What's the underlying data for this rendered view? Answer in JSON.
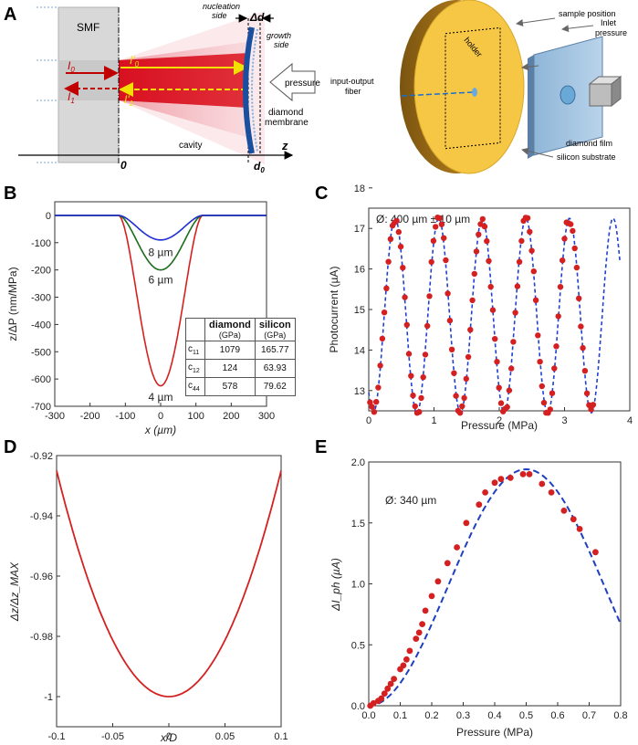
{
  "figure": {
    "panel_labels": [
      "A",
      "B",
      "C",
      "D",
      "E"
    ]
  },
  "panelA": {
    "left": {
      "smf": "SMF",
      "I0": "I",
      "I0_sub": "0",
      "I1": "I",
      "I1_sub": "1",
      "I0p": "I'",
      "I0p_sub": "0",
      "I1p": "I'",
      "I1p_sub": "1",
      "nucleation": "nucleation\nside",
      "growth": "growth\nside",
      "delta_d": "Δd",
      "pressure": "pressure",
      "diamond_membrane": "diamond\nmembrane",
      "cavity": "cavity",
      "z": "z",
      "zero": "0",
      "d0": "d",
      "d0_sub": "0"
    },
    "right": {
      "holder": "holder",
      "sample_position": "sample position",
      "inlet_pressure": "Inlet\npressure",
      "io_fiber": "input-output\nfiber",
      "diamond_film": "diamond film",
      "silicon_substrate": "silicon substrate"
    }
  },
  "tableB": {
    "headers": [
      "",
      "diamond",
      "silicon"
    ],
    "subheaders": [
      "",
      "(GPa)",
      "(GPa)"
    ],
    "rows": [
      {
        "name": "c",
        "sub": "11",
        "diamond": "1079",
        "silicon": "165.77"
      },
      {
        "name": "c",
        "sub": "12",
        "diamond": "124",
        "silicon": "63.93"
      },
      {
        "name": "c",
        "sub": "44",
        "diamond": "578",
        "silicon": "79.62"
      }
    ]
  },
  "chart_data": [
    {
      "id": "B",
      "type": "line",
      "xlabel": "x (µm)",
      "ylabel": "z/ΔP (nm/MPa)",
      "xlim": [
        -300,
        300
      ],
      "ylim": [
        -700,
        50
      ],
      "xticks": [
        "-300",
        "-200",
        "-100",
        "0",
        "100",
        "200",
        "300"
      ],
      "yticks": [
        "0",
        "-100",
        "-200",
        "-300",
        "-400",
        "-500",
        "-600",
        "-700"
      ],
      "xtick_values": [
        -300,
        -200,
        -100,
        0,
        100,
        200,
        300
      ],
      "ytick_values": [
        0,
        -100,
        -200,
        -300,
        -400,
        -500,
        -600,
        -700
      ],
      "series": [
        {
          "name": "4 µm",
          "color": "#d62020",
          "min": -625,
          "halfwidth": 120
        },
        {
          "name": "6 µm",
          "color": "#1b6e1b",
          "min": -200,
          "halfwidth": 120
        },
        {
          "name": "8 µm",
          "color": "#1f2fd0",
          "min": -90,
          "halfwidth": 120
        }
      ],
      "annotations": [
        "8 µm",
        "6 µm",
        "4 µm"
      ]
    },
    {
      "id": "C",
      "type": "scatter",
      "annotation": "Ø: 400 µm ± 10 µm",
      "xlabel": "Pressure (MPa)",
      "ylabel": "Photocurrent (µA)",
      "xlim": [
        0,
        4
      ],
      "ylim": [
        12.5,
        17.5
      ],
      "xticks": [
        "0",
        "1",
        "2",
        "3",
        "4"
      ],
      "yticks": [
        "13",
        "14",
        "15",
        "16",
        "17",
        "18"
      ],
      "xtick_values": [
        0,
        1,
        2,
        3,
        4
      ],
      "ytick_values": [
        13,
        14,
        15,
        16,
        17,
        18
      ],
      "fit": {
        "color": "#2040d0",
        "mean": 14.85,
        "amplitude": 2.4,
        "period": 0.668,
        "phase_min_x": 0.07,
        "x_end": 3.85
      },
      "points_color": "#d42020",
      "point_count": 110
    },
    {
      "id": "D",
      "type": "line",
      "xlabel": "x/D",
      "ylabel": "Δz/Δz_MAX",
      "xlim": [
        -0.1,
        0.1
      ],
      "ylim": [
        -1.01,
        -0.92
      ],
      "xticks": [
        "-0.1",
        "-0.05",
        "0",
        "0.05",
        "0.1"
      ],
      "yticks": [
        "-0.92",
        "-0.94",
        "-0.96",
        "-0.98",
        "-1"
      ],
      "xtick_values": [
        -0.1,
        -0.05,
        0,
        0.05,
        0.1
      ],
      "ytick_values": [
        -0.92,
        -0.94,
        -0.96,
        -0.98,
        -1.0
      ],
      "series": [
        {
          "name": "profile",
          "color": "#d42020",
          "formula": "-1 + 7.5*x^2"
        }
      ]
    },
    {
      "id": "E",
      "type": "scatter",
      "annotation": "Ø: 340 µm",
      "xlabel": "Pressure (MPa)",
      "ylabel": "ΔI_ph (µA)",
      "xlim": [
        0,
        0.8
      ],
      "ylim": [
        0,
        2.0
      ],
      "xticks": [
        "0.0",
        "0.1",
        "0.2",
        "0.3",
        "0.4",
        "0.5",
        "0.6",
        "0.7",
        "0.8"
      ],
      "yticks": [
        "0.0",
        "0.5",
        "1.0",
        "1.5",
        "2.0"
      ],
      "xtick_values": [
        0,
        0.1,
        0.2,
        0.3,
        0.4,
        0.5,
        0.6,
        0.7,
        0.8
      ],
      "ytick_values": [
        0,
        0.5,
        1.0,
        1.5,
        2.0
      ],
      "fit": {
        "color": "#1f3fbf",
        "formula": "0.97*(1-cos(2*pi*x))"
      },
      "points_color": "#d42020",
      "points": [
        [
          0.005,
          0.0
        ],
        [
          0.015,
          0.02
        ],
        [
          0.03,
          0.04
        ],
        [
          0.04,
          0.06
        ],
        [
          0.05,
          0.1
        ],
        [
          0.06,
          0.14
        ],
        [
          0.07,
          0.18
        ],
        [
          0.08,
          0.22
        ],
        [
          0.1,
          0.3
        ],
        [
          0.11,
          0.33
        ],
        [
          0.12,
          0.38
        ],
        [
          0.13,
          0.45
        ],
        [
          0.15,
          0.55
        ],
        [
          0.16,
          0.6
        ],
        [
          0.17,
          0.67
        ],
        [
          0.18,
          0.78
        ],
        [
          0.2,
          0.9
        ],
        [
          0.22,
          1.02
        ],
        [
          0.25,
          1.17
        ],
        [
          0.28,
          1.3
        ],
        [
          0.31,
          1.5
        ],
        [
          0.35,
          1.65
        ],
        [
          0.37,
          1.75
        ],
        [
          0.4,
          1.83
        ],
        [
          0.42,
          1.86
        ],
        [
          0.45,
          1.87
        ],
        [
          0.49,
          1.9
        ],
        [
          0.51,
          1.9
        ],
        [
          0.55,
          1.82
        ],
        [
          0.58,
          1.75
        ],
        [
          0.62,
          1.6
        ],
        [
          0.65,
          1.53
        ],
        [
          0.67,
          1.45
        ],
        [
          0.72,
          1.26
        ]
      ]
    }
  ]
}
